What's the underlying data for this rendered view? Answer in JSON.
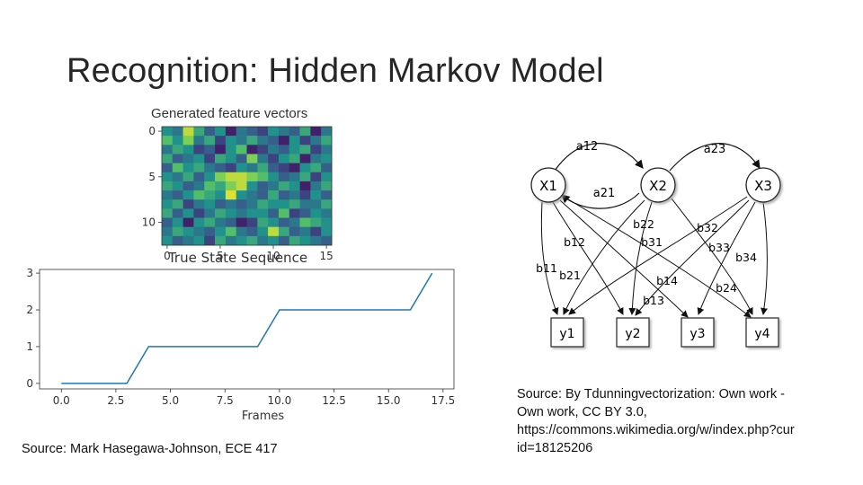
{
  "slide": {
    "title": "Recognition: Hidden Markov Model",
    "source_left": "Source: Mark Hasegawa-Johnson, ECE 417",
    "source_right_lines": [
      "Source: By Tdunningvectorization: Own work -",
      "Own work, CC BY 3.0,",
      "https://commons.wikimedia.org/w/index.php?cur",
      "id=18125206"
    ]
  },
  "chart_data": [
    {
      "type": "heatmap",
      "title": "Generated feature vectors",
      "y_ticks": [
        "0",
        "5",
        "10"
      ],
      "x_ticks": [
        "0",
        "5",
        "10",
        "15"
      ],
      "rows": 13,
      "cols": 16,
      "values": [
        [
          0.5,
          0.4,
          0.9,
          0.6,
          0.3,
          0.5,
          0.1,
          0.4,
          0.3,
          0.2,
          0.5,
          0.4,
          0.3,
          0.6,
          0.1,
          0.4
        ],
        [
          0.7,
          0.5,
          0.8,
          0.4,
          0.6,
          0.2,
          0.5,
          0.4,
          0.6,
          0.4,
          0.3,
          0.1,
          0.5,
          0.2,
          0.4,
          0.6
        ],
        [
          0.4,
          0.6,
          0.5,
          0.2,
          0.3,
          0.1,
          0.5,
          0.7,
          0.1,
          0.2,
          0.4,
          0.3,
          0.5,
          0.6,
          0.2,
          0.4
        ],
        [
          0.6,
          0.3,
          0.4,
          0.5,
          0.2,
          0.6,
          0.5,
          0.3,
          0.8,
          0.4,
          0.2,
          0.5,
          0.6,
          0.1,
          0.4,
          0.5
        ],
        [
          0.3,
          0.7,
          0.5,
          0.6,
          0.4,
          0.3,
          0.2,
          0.5,
          0.4,
          0.6,
          0.3,
          0.2,
          0.1,
          0.5,
          0.6,
          0.3
        ],
        [
          0.5,
          0.4,
          0.6,
          0.3,
          0.5,
          0.8,
          0.9,
          0.9,
          0.8,
          0.7,
          0.5,
          0.3,
          0.4,
          0.6,
          0.2,
          0.5
        ],
        [
          0.6,
          0.5,
          0.3,
          0.4,
          0.7,
          0.6,
          0.8,
          0.9,
          0.5,
          0.3,
          0.4,
          0.6,
          0.5,
          0.1,
          0.4,
          0.6
        ],
        [
          0.4,
          0.3,
          0.5,
          0.7,
          0.6,
          0.5,
          0.95,
          0.5,
          0.4,
          0.3,
          0.6,
          0.3,
          0.4,
          0.2,
          0.5,
          0.3
        ],
        [
          0.5,
          0.6,
          0.2,
          0.4,
          0.5,
          0.3,
          0.4,
          0.3,
          0.4,
          0.6,
          0.5,
          0.5,
          0.6,
          0.4,
          0.4,
          0.6
        ],
        [
          0.6,
          0.3,
          0.5,
          0.2,
          0.4,
          0.6,
          0.5,
          0.4,
          0.5,
          0.5,
          0.3,
          0.7,
          0.2,
          0.3,
          0.5,
          0.4
        ],
        [
          0.3,
          0.5,
          0.1,
          0.5,
          0.6,
          0.4,
          0.3,
          0.1,
          0.2,
          0.6,
          0.5,
          0.3,
          0.4,
          0.7,
          0.6,
          0.5
        ],
        [
          0.4,
          0.6,
          0.5,
          0.4,
          0.3,
          0.5,
          0.7,
          0.4,
          0.3,
          0.5,
          0.9,
          0.6,
          0.3,
          0.4,
          0.2,
          0.5
        ],
        [
          0.5,
          0.3,
          0.4,
          0.5,
          0.2,
          0.6,
          0.4,
          0.5,
          0.6,
          0.4,
          0.5,
          0.3,
          0.6,
          0.5,
          0.4,
          0.3
        ]
      ]
    },
    {
      "type": "line",
      "title": "True State Sequence",
      "xlabel": "Frames",
      "ylabel": "",
      "xlim": [
        -1,
        18
      ],
      "ylim": [
        -0.15,
        3.1
      ],
      "x_ticks": [
        0.0,
        2.5,
        5.0,
        7.5,
        10.0,
        12.5,
        15.0,
        17.5
      ],
      "x_tick_labels": [
        "0.0",
        "2.5",
        "5.0",
        "7.5",
        "10.0",
        "12.5",
        "15.0",
        "17.5"
      ],
      "y_ticks": [
        0,
        1,
        2,
        3
      ],
      "y_tick_labels": [
        "0",
        "1",
        "2",
        "3"
      ],
      "color": "#1f77b4",
      "series": [
        {
          "x": [
            0,
            1,
            2,
            3,
            4,
            5,
            6,
            7,
            8,
            9,
            10,
            11,
            12,
            13,
            14,
            15,
            16,
            17
          ],
          "values": [
            0,
            0,
            0,
            0,
            1,
            1,
            1,
            1,
            1,
            1,
            2,
            2,
            2,
            2,
            2,
            2,
            2,
            3
          ]
        }
      ]
    }
  ],
  "diagram": {
    "states": [
      {
        "id": "X1",
        "label": "X1"
      },
      {
        "id": "X2",
        "label": "X2"
      },
      {
        "id": "X3",
        "label": "X3"
      }
    ],
    "observations": [
      {
        "id": "y1",
        "label": "y1"
      },
      {
        "id": "y2",
        "label": "y2"
      },
      {
        "id": "y3",
        "label": "y3"
      },
      {
        "id": "y4",
        "label": "y4"
      }
    ],
    "transition_labels": {
      "a12": "a12",
      "a21": "a21",
      "a23": "a23"
    },
    "emission_labels": {
      "b11": "b11",
      "b12": "b12",
      "b13": "b13",
      "b14": "b14",
      "b21": "b21",
      "b22": "b22",
      "b24": "b24",
      "b31": "b31",
      "b32": "b32",
      "b33": "b33",
      "b34": "b34"
    }
  }
}
